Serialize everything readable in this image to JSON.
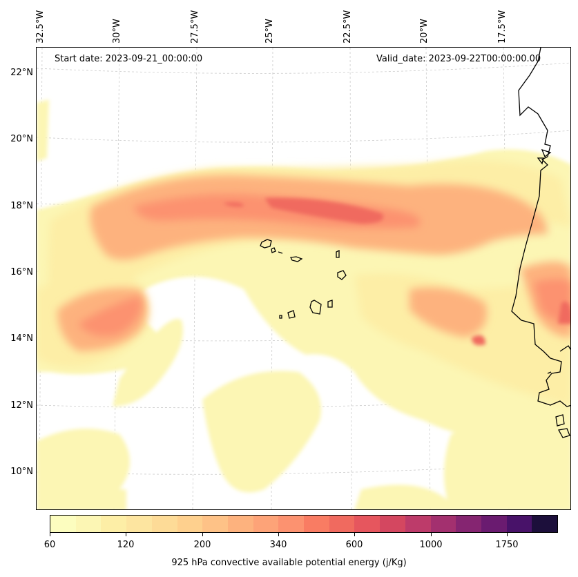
{
  "map": {
    "start_date_text": "Start date: 2023-09-21_00:00:00",
    "valid_date_text": "Valid_date: 2023-09-22T00:00:00.00",
    "lon_labels": [
      "32.5°W",
      "30°W",
      "27.5°W",
      "25°W",
      "22.5°W",
      "20°W",
      "17.5°W"
    ],
    "lat_labels": [
      "22°N",
      "20°N",
      "18°N",
      "16°N",
      "14°N",
      "12°N",
      "10°N"
    ],
    "extent": {
      "lon_min": -32.5,
      "lon_max": -15.0,
      "lat_min": 9.0,
      "lat_max": 22.5
    },
    "field_name": "925 hPa convective available potential energy",
    "coastline_color": "#000000",
    "gridline_color": "#cccccc"
  },
  "colorbar": {
    "label": "925 hPa convective available potential energy (j/Kg)",
    "tick_labels": [
      "60",
      "120",
      "200",
      "340",
      "600",
      "1000",
      "1750"
    ],
    "colors": [
      "#fcfdbf",
      "#fcf6b4",
      "#fdeea6",
      "#fde5a0",
      "#fddb97",
      "#fed08e",
      "#fec287",
      "#fdb27e",
      "#fda378",
      "#fc9270",
      "#f97c63",
      "#f06a5f",
      "#e6565e",
      "#d44760",
      "#bd3b6a",
      "#a3306f",
      "#852571",
      "#6a1b70",
      "#481269",
      "#1c0f3b"
    ]
  }
}
